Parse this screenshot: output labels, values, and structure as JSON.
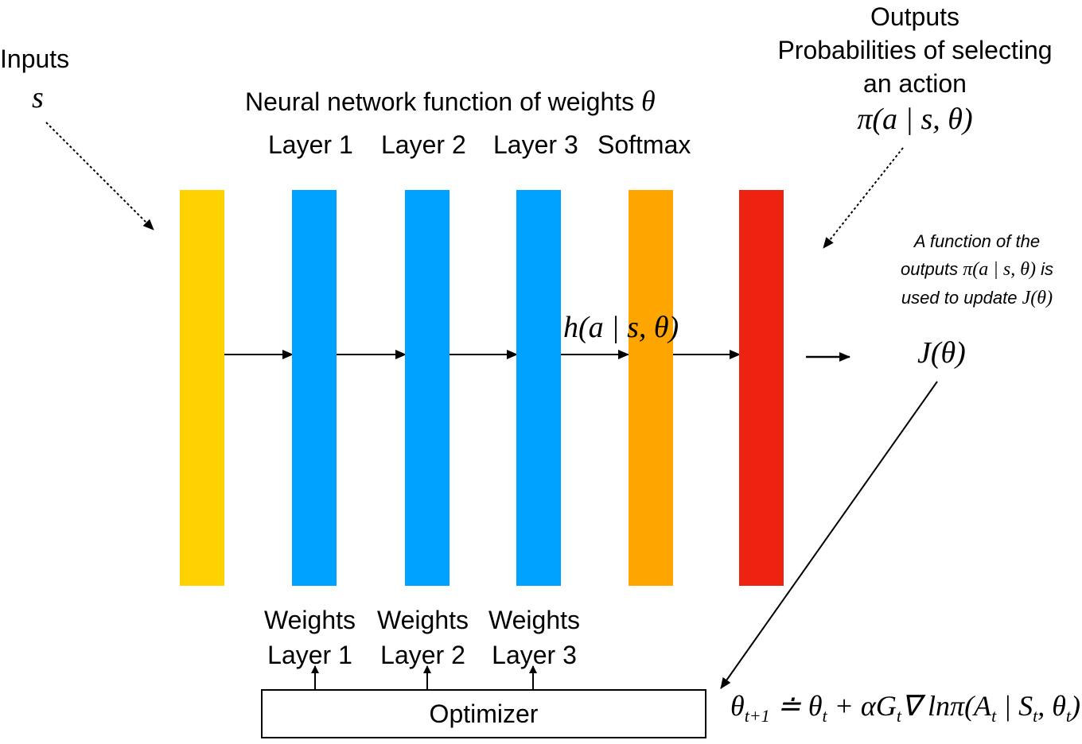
{
  "inputs": {
    "label": "Inputs",
    "variable": "s"
  },
  "network": {
    "title": "Neural network function of weights",
    "title_symbol": "θ",
    "layers": [
      {
        "label": "Layer 1"
      },
      {
        "label": "Layer 2"
      },
      {
        "label": "Layer 3"
      },
      {
        "label": "Softmax"
      }
    ]
  },
  "outputs": {
    "line1": "Outputs",
    "line2": "Probabilities of selecting",
    "line3": "an action",
    "formula": "π(a | s, θ)"
  },
  "note": {
    "line1": "A function of the",
    "line2_prefix": "outputs",
    "line2_formula": "π(a | s, θ)",
    "line2_suffix": "is",
    "line3_prefix": "used to update",
    "line3_formula": "J(θ)"
  },
  "preference_label": "h(a | s, θ)",
  "objective_label": "J(θ)",
  "weights": [
    {
      "line1": "Weights",
      "line2": "Layer 1"
    },
    {
      "line1": "Weights",
      "line2": "Layer 2"
    },
    {
      "line1": "Weights",
      "line2": "Layer 3"
    }
  ],
  "optimizer_label": "Optimizer",
  "update_rule": {
    "lhs": "θ",
    "lhs_sub": "t+1",
    "op": " ≐ θ",
    "t1_sub": "t",
    "mid": " + αG",
    "g_sub": "t",
    "grad": "∇ lnπ(A",
    "a_sub": "t",
    "bar": " | S",
    "s_sub": "t",
    "end": ", θ",
    "theta_sub": "t",
    "close": ")"
  },
  "colors": {
    "input_layer": "#FFD200",
    "hidden_layer": "#00A2FF",
    "softmax_layer": "#FFA500",
    "output_layer": "#EE2211"
  }
}
